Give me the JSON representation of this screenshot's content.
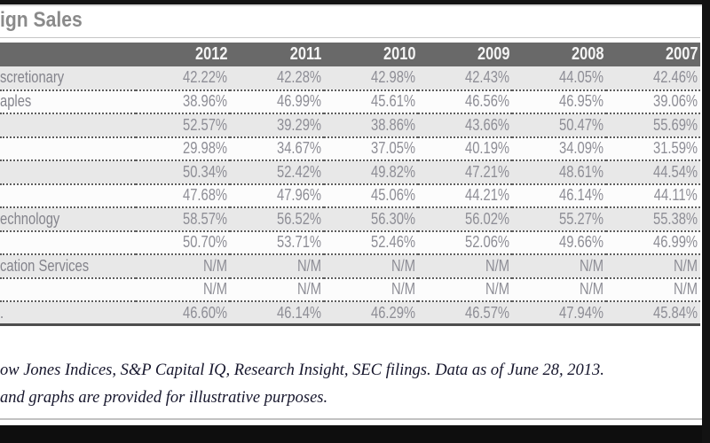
{
  "page": {
    "title": "ign Sales"
  },
  "table": {
    "columns": [
      "2012",
      "2011",
      "2010",
      "2009",
      "2008",
      "2007"
    ],
    "rows": [
      {
        "label": "scretionary",
        "values": [
          "42.22%",
          "42.28%",
          "42.98%",
          "42.43%",
          "44.05%",
          "42.46%"
        ]
      },
      {
        "label": "aples",
        "values": [
          "38.96%",
          "46.99%",
          "45.61%",
          "46.56%",
          "46.95%",
          "39.06%"
        ]
      },
      {
        "label": "",
        "values": [
          "52.57%",
          "39.29%",
          "38.86%",
          "43.66%",
          "50.47%",
          "55.69%"
        ]
      },
      {
        "label": "",
        "values": [
          "29.98%",
          "34.67%",
          "37.05%",
          "40.19%",
          "34.09%",
          "31.59%"
        ]
      },
      {
        "label": "",
        "values": [
          "50.34%",
          "52.42%",
          "49.82%",
          "47.21%",
          "48.61%",
          "44.54%"
        ]
      },
      {
        "label": "",
        "values": [
          "47.68%",
          "47.96%",
          "45.06%",
          "44.21%",
          "46.14%",
          "44.11%"
        ]
      },
      {
        "label": "echnology",
        "values": [
          "58.57%",
          "56.52%",
          "56.30%",
          "56.02%",
          "55.27%",
          "55.38%"
        ]
      },
      {
        "label": "",
        "values": [
          "50.70%",
          "53.71%",
          "52.46%",
          "52.06%",
          "49.66%",
          "46.99%"
        ]
      },
      {
        "label": "cation Services",
        "values": [
          "N/M",
          "N/M",
          "N/M",
          "N/M",
          "N/M",
          "N/M"
        ]
      },
      {
        "label": "",
        "values": [
          "N/M",
          "N/M",
          "N/M",
          "N/M",
          "N/M",
          "N/M"
        ]
      },
      {
        "label": ".",
        "values": [
          "46.60%",
          "46.14%",
          "46.29%",
          "46.57%",
          "47.94%",
          "45.84%"
        ]
      }
    ]
  },
  "footer": {
    "line1": "ow Jones Indices, S&P Capital IQ, Research Insight, SEC filings. Data as of June 28, 2013.",
    "line2": "and graphs are provided for illustrative purposes."
  },
  "colors": {
    "header_bg": "#696969",
    "header_text": "#f4f4f4",
    "row_alt_bg": "#e8e8e8",
    "row_bg": "#fcfcfc",
    "value_text": "#8e8e96",
    "title_text": "#8a8a8a",
    "footnote_text": "#16162c",
    "chrome_black": "#121212"
  }
}
